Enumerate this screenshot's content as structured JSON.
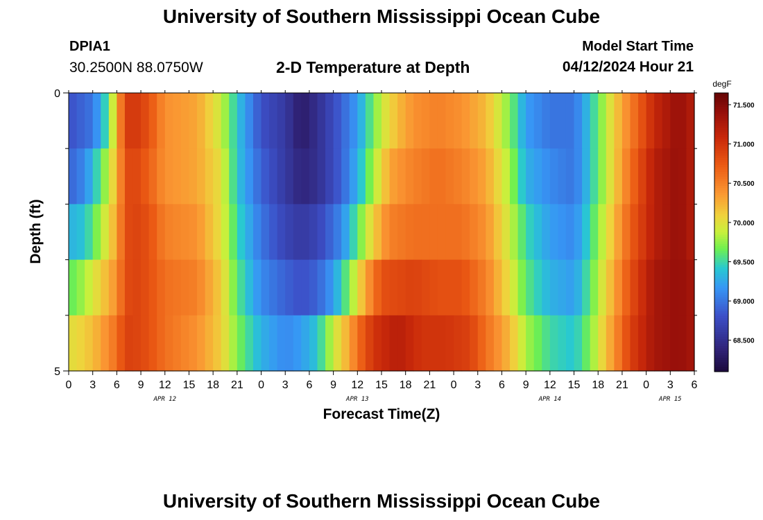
{
  "header": {
    "title": "University of Southern Mississippi Ocean Cube",
    "station_id": "DPIA1",
    "station_coords": "30.2500N  88.0750W",
    "chart_title": "2-D Temperature at Depth",
    "run_label": "Model Start Time",
    "run_time": "04/12/2024 Hour 21"
  },
  "footer": {
    "title": "University of Southern Mississippi Ocean Cube"
  },
  "chart_data": {
    "type": "heatmap",
    "title": "2-D Temperature at Depth",
    "xlabel": "Forecast Time(Z)",
    "ylabel": "Depth (ft)",
    "ylim": [
      0,
      5
    ],
    "y_tick_labels": [
      "0",
      "5"
    ],
    "x_tick_labels": [
      "0",
      "3",
      "6",
      "9",
      "12",
      "15",
      "18",
      "21",
      "0",
      "3",
      "6",
      "9",
      "12",
      "15",
      "18",
      "21",
      "0",
      "3",
      "6",
      "9",
      "12",
      "15",
      "18",
      "21",
      "0",
      "3",
      "6"
    ],
    "date_labels": [
      {
        "text": "APR 12",
        "at_hour": 12
      },
      {
        "text": "APR 13",
        "at_hour": 36
      },
      {
        "text": "APR 14",
        "at_hour": 60
      },
      {
        "text": "APR 15",
        "at_hour": 75
      }
    ],
    "x_hours": [
      0,
      78
    ],
    "depth_rows": 5,
    "colorbar": {
      "unit": "degF",
      "min": 68.1,
      "max": 71.65,
      "tick_labels": [
        "68.500",
        "69.000",
        "69.500",
        "70.000",
        "70.500",
        "71.000",
        "71.500"
      ],
      "tick_values": [
        68.5,
        69.0,
        69.5,
        70.0,
        70.5,
        71.0,
        71.5
      ]
    },
    "series": [
      {
        "depth_layer": "0-1 ft",
        "points": [
          [
            0,
            68.8
          ],
          [
            3,
            69.0
          ],
          [
            5,
            69.6
          ],
          [
            6,
            70.2
          ],
          [
            7,
            70.9
          ],
          [
            8,
            71.0
          ],
          [
            10,
            70.8
          ],
          [
            12,
            70.4
          ],
          [
            16,
            70.3
          ],
          [
            19,
            69.9
          ],
          [
            21,
            69.4
          ],
          [
            24,
            68.8
          ],
          [
            27,
            68.6
          ],
          [
            29,
            68.3
          ],
          [
            31,
            68.5
          ],
          [
            34,
            68.9
          ],
          [
            36,
            69.2
          ],
          [
            39,
            69.9
          ],
          [
            41,
            70.2
          ],
          [
            43,
            70.4
          ],
          [
            46,
            70.5
          ],
          [
            49,
            70.4
          ],
          [
            52,
            70.2
          ],
          [
            55,
            69.7
          ],
          [
            57,
            69.2
          ],
          [
            60,
            69.0
          ],
          [
            63,
            69.0
          ],
          [
            65,
            69.4
          ],
          [
            68,
            70.1
          ],
          [
            70,
            70.5
          ],
          [
            73,
            71.1
          ],
          [
            76,
            71.4
          ],
          [
            78,
            71.2
          ]
        ]
      },
      {
        "depth_layer": "1-2 ft",
        "points": [
          [
            0,
            68.9
          ],
          [
            2,
            69.1
          ],
          [
            4,
            69.6
          ],
          [
            6,
            70.2
          ],
          [
            7,
            70.8
          ],
          [
            8,
            70.9
          ],
          [
            10,
            70.7
          ],
          [
            12,
            70.4
          ],
          [
            16,
            70.3
          ],
          [
            19,
            70.0
          ],
          [
            21,
            69.4
          ],
          [
            24,
            68.9
          ],
          [
            27,
            68.6
          ],
          [
            29,
            68.4
          ],
          [
            31,
            68.5
          ],
          [
            34,
            68.9
          ],
          [
            36,
            69.3
          ],
          [
            38,
            69.8
          ],
          [
            40,
            70.3
          ],
          [
            43,
            70.5
          ],
          [
            46,
            70.6
          ],
          [
            49,
            70.5
          ],
          [
            52,
            70.3
          ],
          [
            55,
            69.8
          ],
          [
            57,
            69.3
          ],
          [
            60,
            69.1
          ],
          [
            63,
            69.0
          ],
          [
            65,
            69.4
          ],
          [
            68,
            70.1
          ],
          [
            70,
            70.6
          ],
          [
            73,
            71.2
          ],
          [
            76,
            71.4
          ],
          [
            78,
            71.2
          ]
        ]
      },
      {
        "depth_layer": "2-3 ft",
        "points": [
          [
            0,
            69.3
          ],
          [
            2,
            69.4
          ],
          [
            4,
            69.8
          ],
          [
            6,
            70.3
          ],
          [
            7,
            70.8
          ],
          [
            8,
            70.9
          ],
          [
            10,
            70.8
          ],
          [
            12,
            70.5
          ],
          [
            16,
            70.4
          ],
          [
            19,
            70.0
          ],
          [
            21,
            69.5
          ],
          [
            24,
            69.0
          ],
          [
            27,
            68.7
          ],
          [
            29,
            68.6
          ],
          [
            31,
            68.7
          ],
          [
            34,
            69.1
          ],
          [
            36,
            69.6
          ],
          [
            38,
            70.1
          ],
          [
            40,
            70.5
          ],
          [
            43,
            70.6
          ],
          [
            46,
            70.6
          ],
          [
            49,
            70.6
          ],
          [
            52,
            70.4
          ],
          [
            55,
            69.9
          ],
          [
            57,
            69.5
          ],
          [
            60,
            69.2
          ],
          [
            63,
            69.1
          ],
          [
            65,
            69.5
          ],
          [
            68,
            70.2
          ],
          [
            70,
            70.7
          ],
          [
            73,
            71.2
          ],
          [
            76,
            71.4
          ],
          [
            78,
            71.2
          ]
        ]
      },
      {
        "depth_layer": "3-4 ft",
        "points": [
          [
            0,
            69.6
          ],
          [
            2,
            69.8
          ],
          [
            4,
            70.1
          ],
          [
            6,
            70.4
          ],
          [
            7,
            70.8
          ],
          [
            8,
            70.9
          ],
          [
            10,
            70.8
          ],
          [
            12,
            70.6
          ],
          [
            16,
            70.5
          ],
          [
            19,
            70.1
          ],
          [
            21,
            69.6
          ],
          [
            24,
            69.1
          ],
          [
            27,
            68.9
          ],
          [
            29,
            68.8
          ],
          [
            31,
            68.9
          ],
          [
            33,
            69.2
          ],
          [
            35,
            69.7
          ],
          [
            37,
            70.3
          ],
          [
            39,
            70.8
          ],
          [
            43,
            70.9
          ],
          [
            46,
            70.8
          ],
          [
            49,
            70.8
          ],
          [
            52,
            70.5
          ],
          [
            55,
            70.0
          ],
          [
            57,
            69.6
          ],
          [
            60,
            69.3
          ],
          [
            63,
            69.2
          ],
          [
            65,
            69.6
          ],
          [
            68,
            70.3
          ],
          [
            70,
            70.8
          ],
          [
            73,
            71.3
          ],
          [
            76,
            71.4
          ],
          [
            78,
            71.3
          ]
        ]
      },
      {
        "depth_layer": "4-5 ft",
        "points": [
          [
            0,
            70.0
          ],
          [
            2,
            70.1
          ],
          [
            4,
            70.3
          ],
          [
            6,
            70.6
          ],
          [
            7,
            70.9
          ],
          [
            8,
            70.9
          ],
          [
            10,
            70.8
          ],
          [
            12,
            70.6
          ],
          [
            16,
            70.4
          ],
          [
            19,
            70.1
          ],
          [
            21,
            69.7
          ],
          [
            24,
            69.3
          ],
          [
            27,
            69.1
          ],
          [
            29,
            69.2
          ],
          [
            31,
            69.4
          ],
          [
            33,
            69.9
          ],
          [
            35,
            70.3
          ],
          [
            36,
            70.6
          ],
          [
            38,
            71.0
          ],
          [
            41,
            71.2
          ],
          [
            44,
            71.0
          ],
          [
            47,
            71.0
          ],
          [
            50,
            70.9
          ],
          [
            52,
            70.6
          ],
          [
            55,
            70.2
          ],
          [
            57,
            69.8
          ],
          [
            60,
            69.5
          ],
          [
            63,
            69.4
          ],
          [
            65,
            69.7
          ],
          [
            68,
            70.4
          ],
          [
            70,
            70.9
          ],
          [
            73,
            71.3
          ],
          [
            76,
            71.4
          ],
          [
            78,
            71.3
          ]
        ]
      }
    ]
  }
}
